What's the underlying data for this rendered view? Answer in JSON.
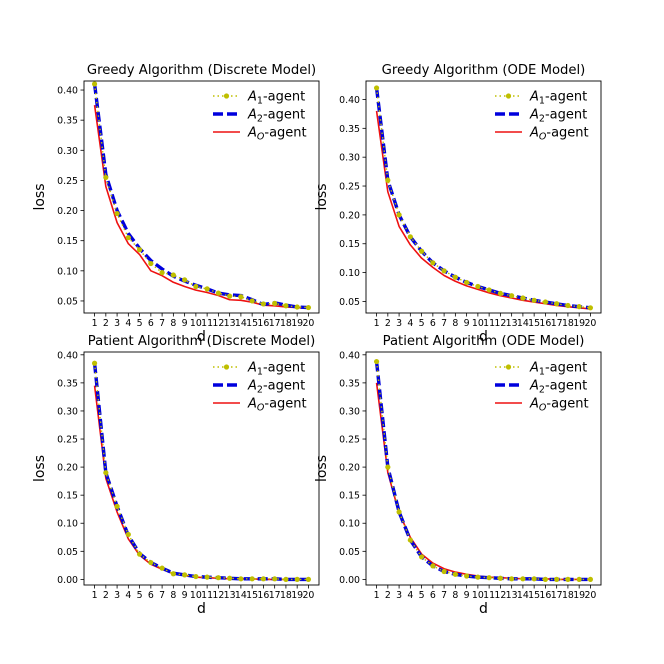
{
  "chart_data": [
    {
      "type": "line",
      "title": "Greedy Algorithm (Discrete Model)",
      "xlabel": "d",
      "ylabel": "loss",
      "x": [
        1,
        2,
        3,
        4,
        5,
        6,
        7,
        8,
        9,
        10,
        11,
        12,
        13,
        14,
        15,
        16,
        17,
        18,
        19,
        20
      ],
      "xticks": [
        "1",
        "2",
        "3",
        "4",
        "5",
        "6",
        "7",
        "8",
        "9",
        "10",
        "11",
        "12",
        "13",
        "14",
        "15",
        "16",
        "17",
        "18",
        "19",
        "20"
      ],
      "ylim": [
        0.03,
        0.415
      ],
      "yticks": [
        0.05,
        0.1,
        0.15,
        0.2,
        0.25,
        0.3,
        0.35,
        0.4
      ],
      "yticklabels": [
        "0.05",
        "0.10",
        "0.15",
        "0.20",
        "0.25",
        "0.30",
        "0.35",
        "0.40"
      ],
      "legend_position": "top-right",
      "series": [
        {
          "name": "A1",
          "name_sub": "1",
          "name_suffix": "-agent",
          "color": "#bfbf00",
          "style": "dotted-marker",
          "values": [
            0.41,
            0.255,
            0.195,
            0.155,
            0.135,
            0.112,
            0.097,
            0.093,
            0.085,
            0.074,
            0.07,
            0.063,
            0.058,
            0.057,
            0.05,
            0.045,
            0.046,
            0.042,
            0.04,
            0.039
          ]
        },
        {
          "name": "A2",
          "name_sub": "2",
          "name_suffix": "-agent",
          "color": "#0000dd",
          "style": "dashed",
          "values": [
            0.41,
            0.26,
            0.2,
            0.162,
            0.137,
            0.117,
            0.103,
            0.091,
            0.083,
            0.076,
            0.07,
            0.063,
            0.06,
            0.059,
            0.052,
            0.044,
            0.047,
            0.043,
            0.04,
            0.039
          ]
        },
        {
          "name": "AO",
          "name_sub": "O",
          "name_suffix": "-agent",
          "color": "#ee1111",
          "style": "solid",
          "values": [
            0.375,
            0.24,
            0.18,
            0.145,
            0.127,
            0.1,
            0.092,
            0.081,
            0.074,
            0.068,
            0.064,
            0.059,
            0.052,
            0.051,
            0.048,
            0.043,
            0.042,
            0.04,
            0.039,
            0.038
          ]
        }
      ]
    },
    {
      "type": "line",
      "title": "Greedy Algorithm (ODE Model)",
      "xlabel": "d",
      "ylabel": "loss",
      "x": [
        1,
        2,
        3,
        4,
        5,
        6,
        7,
        8,
        9,
        10,
        11,
        12,
        13,
        14,
        15,
        16,
        17,
        18,
        19,
        20
      ],
      "xticks": [
        "1",
        "2",
        "3",
        "4",
        "5",
        "6",
        "7",
        "8",
        "9",
        "10",
        "11",
        "12",
        "13",
        "14",
        "15",
        "16",
        "17",
        "18",
        "19",
        "20"
      ],
      "ylim": [
        0.03,
        0.432
      ],
      "yticks": [
        0.05,
        0.1,
        0.15,
        0.2,
        0.25,
        0.3,
        0.35,
        0.4
      ],
      "yticklabels": [
        "0.05",
        "0.10",
        "0.15",
        "0.20",
        "0.25",
        "0.30",
        "0.35",
        "0.40"
      ],
      "legend_position": "top-right",
      "series": [
        {
          "name": "A1",
          "name_sub": "1",
          "name_suffix": "-agent",
          "color": "#bfbf00",
          "style": "dotted-marker",
          "values": [
            0.42,
            0.26,
            0.2,
            0.162,
            0.137,
            0.117,
            0.103,
            0.092,
            0.083,
            0.076,
            0.07,
            0.064,
            0.06,
            0.056,
            0.052,
            0.049,
            0.046,
            0.043,
            0.041,
            0.039
          ]
        },
        {
          "name": "A2",
          "name_sub": "2",
          "name_suffix": "-agent",
          "color": "#0000dd",
          "style": "dashed",
          "values": [
            0.42,
            0.26,
            0.2,
            0.162,
            0.137,
            0.117,
            0.103,
            0.092,
            0.083,
            0.076,
            0.07,
            0.064,
            0.06,
            0.056,
            0.052,
            0.049,
            0.046,
            0.043,
            0.041,
            0.039
          ]
        },
        {
          "name": "AO",
          "name_sub": "O",
          "name_suffix": "-agent",
          "color": "#ee1111",
          "style": "solid",
          "values": [
            0.38,
            0.24,
            0.18,
            0.148,
            0.125,
            0.109,
            0.095,
            0.085,
            0.077,
            0.071,
            0.065,
            0.06,
            0.056,
            0.052,
            0.049,
            0.046,
            0.043,
            0.041,
            0.039,
            0.037
          ]
        }
      ]
    },
    {
      "type": "line",
      "title": "Patient Algorithm (Discrete Model)",
      "xlabel": "d",
      "ylabel": "loss",
      "x": [
        1,
        2,
        3,
        4,
        5,
        6,
        7,
        8,
        9,
        10,
        11,
        12,
        13,
        14,
        15,
        16,
        17,
        18,
        19,
        20
      ],
      "xticks": [
        "1",
        "2",
        "3",
        "4",
        "5",
        "6",
        "7",
        "8",
        "9",
        "10",
        "11",
        "12",
        "13",
        "14",
        "15",
        "16",
        "17",
        "18",
        "19",
        "20"
      ],
      "ylim": [
        -0.01,
        0.405
      ],
      "yticks": [
        0.0,
        0.05,
        0.1,
        0.15,
        0.2,
        0.25,
        0.3,
        0.35,
        0.4
      ],
      "yticklabels": [
        "0.00",
        "0.05",
        "0.10",
        "0.15",
        "0.20",
        "0.25",
        "0.30",
        "0.35",
        "0.40"
      ],
      "legend_position": "top-right",
      "series": [
        {
          "name": "A1",
          "name_sub": "1",
          "name_suffix": "-agent",
          "color": "#bfbf00",
          "style": "dotted-marker",
          "values": [
            0.385,
            0.19,
            0.13,
            0.08,
            0.045,
            0.03,
            0.02,
            0.01,
            0.008,
            0.005,
            0.004,
            0.003,
            0.002,
            0.001,
            0.001,
            0.001,
            0.001,
            0.0,
            0.0,
            0.0
          ]
        },
        {
          "name": "A2",
          "name_sub": "2",
          "name_suffix": "-agent",
          "color": "#0000dd",
          "style": "dashed",
          "values": [
            0.385,
            0.19,
            0.13,
            0.078,
            0.046,
            0.03,
            0.02,
            0.011,
            0.008,
            0.005,
            0.004,
            0.003,
            0.002,
            0.001,
            0.001,
            0.001,
            0.001,
            0.0,
            0.0,
            0.0
          ]
        },
        {
          "name": "AO",
          "name_sub": "O",
          "name_suffix": "-agent",
          "color": "#ee1111",
          "style": "solid",
          "values": [
            0.345,
            0.18,
            0.12,
            0.072,
            0.043,
            0.027,
            0.018,
            0.01,
            0.007,
            0.004,
            0.003,
            0.002,
            0.001,
            0.001,
            0.001,
            0.0,
            0.0,
            0.0,
            0.0,
            0.0
          ]
        }
      ]
    },
    {
      "type": "line",
      "title": "Patient Algorithm (ODE Model)",
      "xlabel": "d",
      "ylabel": "loss",
      "x": [
        1,
        2,
        3,
        4,
        5,
        6,
        7,
        8,
        9,
        10,
        11,
        12,
        13,
        14,
        15,
        16,
        17,
        18,
        19,
        20
      ],
      "xticks": [
        "1",
        "2",
        "3",
        "4",
        "5",
        "6",
        "7",
        "8",
        "9",
        "10",
        "11",
        "12",
        "13",
        "14",
        "15",
        "16",
        "17",
        "18",
        "19",
        "20"
      ],
      "ylim": [
        -0.01,
        0.405
      ],
      "yticks": [
        0.0,
        0.05,
        0.1,
        0.15,
        0.2,
        0.25,
        0.3,
        0.35,
        0.4
      ],
      "yticklabels": [
        "0.00",
        "0.05",
        "0.10",
        "0.15",
        "0.20",
        "0.25",
        "0.30",
        "0.35",
        "0.40"
      ],
      "legend_position": "top-right",
      "series": [
        {
          "name": "A1",
          "name_sub": "1",
          "name_suffix": "-agent",
          "color": "#bfbf00",
          "style": "dotted-marker",
          "values": [
            0.388,
            0.2,
            0.12,
            0.07,
            0.04,
            0.024,
            0.014,
            0.009,
            0.006,
            0.004,
            0.003,
            0.002,
            0.001,
            0.001,
            0.001,
            0.0,
            0.0,
            0.0,
            0.0,
            0.0
          ]
        },
        {
          "name": "A2",
          "name_sub": "2",
          "name_suffix": "-agent",
          "color": "#0000dd",
          "style": "dashed",
          "values": [
            0.388,
            0.2,
            0.12,
            0.07,
            0.04,
            0.024,
            0.014,
            0.009,
            0.006,
            0.004,
            0.003,
            0.002,
            0.001,
            0.001,
            0.001,
            0.0,
            0.0,
            0.0,
            0.0,
            0.0
          ]
        },
        {
          "name": "AO",
          "name_sub": "O",
          "name_suffix": "-agent",
          "color": "#ee1111",
          "style": "solid",
          "values": [
            0.35,
            0.19,
            0.118,
            0.075,
            0.045,
            0.029,
            0.019,
            0.013,
            0.009,
            0.006,
            0.004,
            0.003,
            0.002,
            0.001,
            0.001,
            0.001,
            0.0,
            0.0,
            0.0,
            0.0
          ]
        }
      ]
    }
  ]
}
